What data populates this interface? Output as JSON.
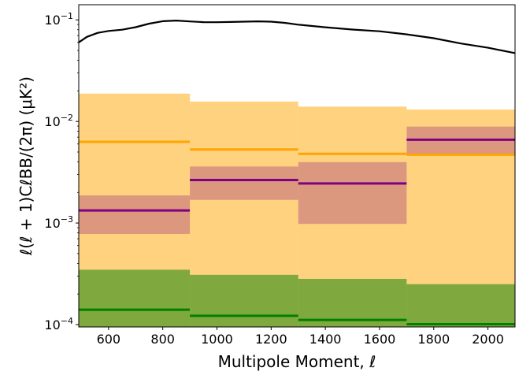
{
  "chart_data": {
    "type": "bar",
    "xlabel": "Multipole Moment, ℓ",
    "ylabel": "ℓ(ℓ + 1)CℓBB/(2π) (μK²)",
    "xlim": [
      490,
      2100
    ],
    "ylim": [
      9.48e-05,
      0.141
    ],
    "yscale": "log",
    "grid": false,
    "x_tick_labels": [
      "600",
      "800",
      "1000",
      "1200",
      "1400",
      "1600",
      "1800",
      "2000"
    ],
    "x_ticks": [
      600,
      800,
      1000,
      1200,
      1400,
      1600,
      1800,
      2000
    ],
    "y_ticks": [
      {
        "value": 0.1,
        "mantissa": "10",
        "exponent": "−1"
      },
      {
        "value": 0.01,
        "mantissa": "10",
        "exponent": "−2"
      },
      {
        "value": 0.001,
        "mantissa": "10",
        "exponent": "−3"
      },
      {
        "value": 0.0001,
        "mantissa": "10",
        "exponent": "−4"
      }
    ],
    "bins": [
      {
        "lo": 490,
        "hi": 900
      },
      {
        "lo": 900,
        "hi": 1300
      },
      {
        "lo": 1300,
        "hi": 1700
      },
      {
        "lo": 1700,
        "hi": 2100
      }
    ],
    "band_series": [
      {
        "color": "#ffa500",
        "band_opacity": 0.5,
        "central": [
          0.0063,
          0.0053,
          0.0048,
          0.0047
        ],
        "lower": [
          9.5e-05,
          9.5e-05,
          9.5e-05,
          9.5e-05
        ],
        "upper": [
          0.0188,
          0.0157,
          0.014,
          0.0131
        ]
      },
      {
        "color": "#800080",
        "band_opacity": 0.28,
        "central": [
          0.00133,
          0.00265,
          0.00245,
          0.0066
        ],
        "lower": [
          0.00078,
          0.00169,
          0.00098,
          0.0046
        ],
        "upper": [
          0.00187,
          0.0036,
          0.00398,
          0.0089
        ]
      },
      {
        "color": "#008000",
        "band_opacity": 0.5,
        "central": [
          0.00014,
          0.000122,
          0.000111,
          0.000101
        ],
        "lower": [
          9.5e-05,
          9.5e-05,
          9.5e-05,
          9.5e-05
        ],
        "upper": [
          0.000347,
          0.000309,
          0.000282,
          0.00025
        ]
      }
    ],
    "line_series": [
      {
        "color": "#000000",
        "x": [
          490,
          520,
          560,
          600,
          650,
          700,
          750,
          800,
          850,
          900,
          950,
          1000,
          1050,
          1100,
          1150,
          1200,
          1250,
          1300,
          1400,
          1500,
          1600,
          1700,
          1800,
          1900,
          2000,
          2100
        ],
        "y": [
          0.06,
          0.068,
          0.0745,
          0.0778,
          0.08,
          0.0848,
          0.0918,
          0.0971,
          0.0985,
          0.0965,
          0.0951,
          0.0949,
          0.0953,
          0.096,
          0.0968,
          0.096,
          0.0935,
          0.0897,
          0.0846,
          0.0803,
          0.0772,
          0.0721,
          0.066,
          0.0586,
          0.0532,
          0.0471
        ]
      }
    ]
  }
}
